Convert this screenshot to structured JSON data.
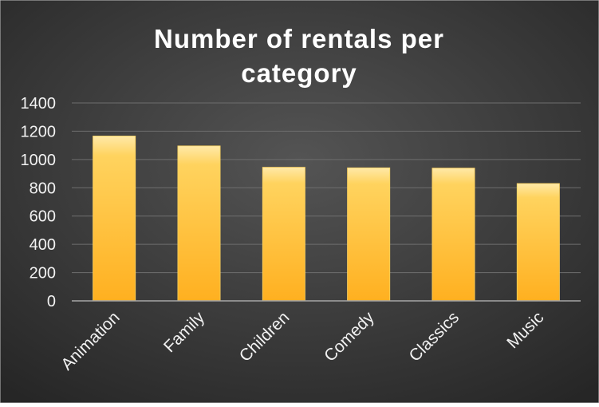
{
  "chart_data": {
    "type": "bar",
    "title_lines": [
      "Number of rentals per",
      "category"
    ],
    "categories": [
      "Animation",
      "Family",
      "Children",
      "Comedy",
      "Classics",
      "Music"
    ],
    "values": [
      1166,
      1096,
      945,
      941,
      939,
      830
    ],
    "xlabel": "",
    "ylabel": "",
    "ylim": [
      0,
      1400
    ],
    "yticks": [
      0,
      200,
      400,
      600,
      800,
      1000,
      1200,
      1400
    ],
    "grid": true,
    "legend": "none"
  },
  "colors": {
    "background_light": "#545454",
    "background_dark": "#262626",
    "bar_light": "#ffe9a8",
    "bar_mid": "#ffd35e",
    "bar_dark": "#ffb020",
    "gridline": "#6e6e6e",
    "axis_line": "#a6a6a6"
  }
}
